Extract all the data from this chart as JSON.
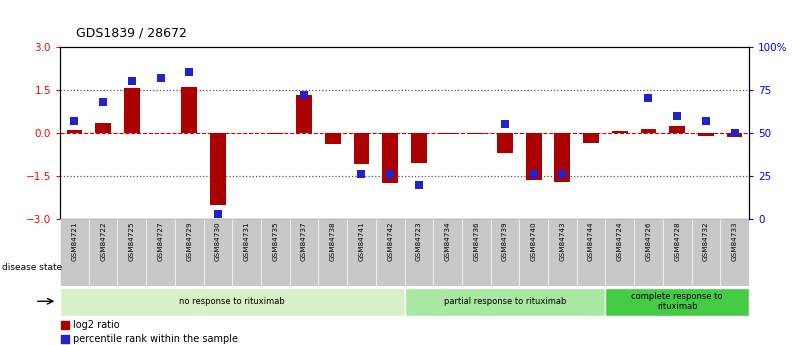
{
  "title": "GDS1839 / 28672",
  "samples": [
    "GSM84721",
    "GSM84722",
    "GSM84725",
    "GSM84727",
    "GSM84729",
    "GSM84730",
    "GSM84731",
    "GSM84735",
    "GSM84737",
    "GSM84738",
    "GSM84741",
    "GSM84742",
    "GSM84723",
    "GSM84734",
    "GSM84736",
    "GSM84739",
    "GSM84740",
    "GSM84743",
    "GSM84744",
    "GSM84724",
    "GSM84726",
    "GSM84728",
    "GSM84732",
    "GSM84733"
  ],
  "log2_ratio": [
    0.1,
    0.35,
    1.55,
    0.0,
    1.6,
    -2.5,
    0.0,
    -0.05,
    1.3,
    -0.4,
    -1.1,
    -1.75,
    -1.05,
    -0.05,
    -0.05,
    -0.7,
    -1.65,
    -1.7,
    -0.35,
    0.05,
    0.15,
    0.25,
    -0.1,
    -0.15
  ],
  "percentile_rank": [
    57,
    68,
    80,
    82,
    85,
    3,
    null,
    null,
    72,
    null,
    26,
    26,
    20,
    null,
    null,
    55,
    26,
    26,
    null,
    null,
    70,
    60,
    57,
    50
  ],
  "groups": [
    {
      "label": "no response to rituximab",
      "start": 0,
      "end": 12,
      "color": "#d8f0c8"
    },
    {
      "label": "partial response to rituximab",
      "start": 12,
      "end": 19,
      "color": "#a8e8a0"
    },
    {
      "label": "complete response to\nrituximab",
      "start": 19,
      "end": 24,
      "color": "#44cc44"
    }
  ],
  "bar_color": "#aa0000",
  "dot_color": "#2222cc",
  "hline_color": "#cc0000",
  "dotted_color": "#555555",
  "ylim_left": [
    -3,
    3
  ],
  "ylim_right": [
    0,
    100
  ],
  "yticks_left": [
    -3,
    -1.5,
    0,
    1.5,
    3
  ],
  "yticks_right": [
    0,
    25,
    50,
    75,
    100
  ],
  "yticklabels_right": [
    "0",
    "25",
    "50",
    "75",
    "100%"
  ],
  "background_color": "#ffffff",
  "bar_width": 0.55,
  "dot_size": 28,
  "label_area_color": "#c8c8c8"
}
